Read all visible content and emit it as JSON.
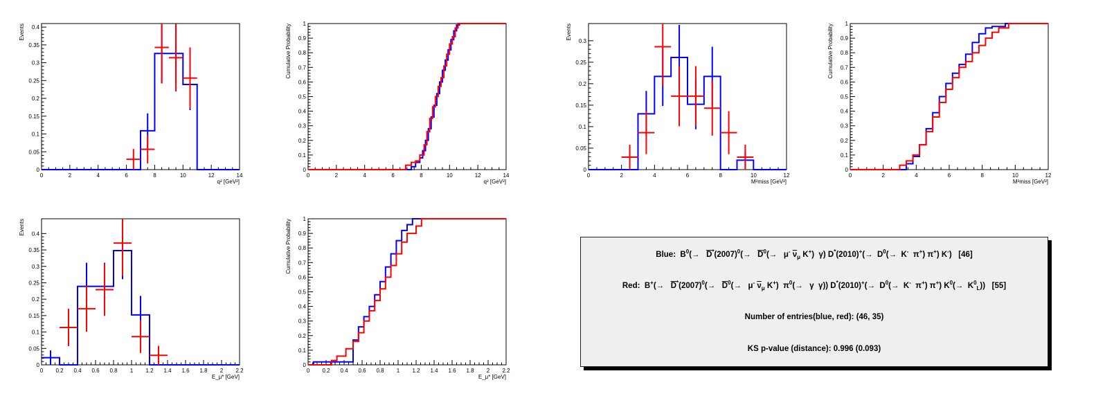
{
  "chart_data": [
    {
      "type": "histogram",
      "id": "p1",
      "xlabel": "q² [GeV²]",
      "ylabel": "Events",
      "xlim": [
        0,
        14
      ],
      "ylim": [
        0,
        0.41
      ],
      "xticks": [
        0,
        2,
        4,
        6,
        8,
        10,
        12,
        14
      ],
      "yticks": [
        0,
        0.05,
        0.1,
        0.15,
        0.2,
        0.25,
        0.3,
        0.35,
        0.4
      ],
      "series": [
        {
          "color": "#0000ff",
          "bin_width": 1,
          "x": [
            0.5,
            1.5,
            2.5,
            3.5,
            4.5,
            5.5,
            6.5,
            7.5,
            8.5,
            9.5,
            10.5,
            11.5,
            12.5,
            13.5
          ],
          "y": [
            0,
            0,
            0,
            0,
            0,
            0,
            0,
            0.109,
            0.326,
            0.326,
            0.239,
            0,
            0,
            0
          ],
          "err": [
            0,
            0,
            0,
            0,
            0,
            0,
            0,
            0.049,
            0.084,
            0.084,
            0.072,
            0,
            0,
            0
          ]
        },
        {
          "color": "#ff0000",
          "bin_width": 1,
          "points": [
            [
              6.5,
              0.029,
              0.029
            ],
            [
              7.5,
              0.057,
              0.04
            ],
            [
              8.5,
              0.343,
              0.1
            ],
            [
              9.5,
              0.314,
              0.095
            ],
            [
              10.5,
              0.257,
              0.086
            ]
          ]
        }
      ]
    },
    {
      "type": "line",
      "id": "p2",
      "xlabel": "q² [GeV²]",
      "ylabel": "Cumulative Probability",
      "xlim": [
        0,
        14
      ],
      "ylim": [
        0,
        1
      ],
      "xticks": [
        0,
        2,
        4,
        6,
        8,
        10,
        12,
        14
      ],
      "yticks": [
        0,
        0.1,
        0.2,
        0.3,
        0.4,
        0.5,
        0.6,
        0.7,
        0.8,
        0.9,
        1
      ],
      "series": [
        {
          "color": "#0000ff",
          "x": [
            0,
            7.0,
            7.3,
            7.6,
            7.9,
            8.1,
            8.3,
            8.5,
            8.7,
            8.9,
            9.1,
            9.3,
            9.5,
            9.7,
            9.9,
            10.1,
            10.3,
            10.5,
            10.7,
            14
          ],
          "y": [
            0,
            0,
            0.02,
            0.05,
            0.08,
            0.13,
            0.2,
            0.28,
            0.36,
            0.44,
            0.52,
            0.6,
            0.68,
            0.75,
            0.82,
            0.89,
            0.95,
            0.99,
            1,
            1
          ]
        },
        {
          "color": "#ff0000",
          "x": [
            0,
            6.5,
            6.9,
            7.3,
            7.6,
            7.9,
            8.2,
            8.4,
            8.6,
            8.8,
            9.0,
            9.2,
            9.4,
            9.6,
            9.8,
            10.0,
            10.2,
            10.4,
            10.6,
            14
          ],
          "y": [
            0,
            0,
            0.03,
            0.05,
            0.06,
            0.1,
            0.17,
            0.26,
            0.35,
            0.43,
            0.5,
            0.57,
            0.63,
            0.71,
            0.79,
            0.86,
            0.91,
            0.97,
            1,
            1
          ]
        }
      ]
    },
    {
      "type": "histogram",
      "id": "p3",
      "xlabel": "M²miss [GeV²]",
      "ylabel": "Events",
      "xlim": [
        0,
        12
      ],
      "ylim": [
        0,
        0.34
      ],
      "xticks": [
        0,
        2,
        4,
        6,
        8,
        10,
        12
      ],
      "yticks": [
        0,
        0.05,
        0.1,
        0.15,
        0.2,
        0.25,
        0.3
      ],
      "series": [
        {
          "color": "#0000ff",
          "bin_width": 1,
          "x": [
            0.5,
            1.5,
            2.5,
            3.5,
            4.5,
            5.5,
            6.5,
            7.5,
            8.5,
            9.5,
            10.5,
            11.5
          ],
          "y": [
            0,
            0,
            0,
            0.13,
            0.217,
            0.261,
            0.152,
            0.217,
            0,
            0.022,
            0,
            0
          ],
          "err": [
            0,
            0,
            0,
            0.053,
            0.069,
            0.076,
            0.058,
            0.069,
            0,
            0.022,
            0,
            0
          ]
        },
        {
          "color": "#ff0000",
          "bin_width": 1,
          "points": [
            [
              2.5,
              0.029,
              0.029
            ],
            [
              3.5,
              0.086,
              0.05
            ],
            [
              4.5,
              0.286,
              0.09
            ],
            [
              5.5,
              0.171,
              0.07
            ],
            [
              6.5,
              0.171,
              0.07
            ],
            [
              7.5,
              0.143,
              0.064
            ],
            [
              8.5,
              0.086,
              0.05
            ],
            [
              9.5,
              0.029,
              0.029
            ]
          ]
        }
      ]
    },
    {
      "type": "line",
      "id": "p4",
      "xlabel": "M²miss [GeV²]",
      "ylabel": "Cumulative Probability",
      "xlim": [
        0,
        12
      ],
      "ylim": [
        0,
        1
      ],
      "xticks": [
        0,
        2,
        4,
        6,
        8,
        10,
        12
      ],
      "yticks": [
        0,
        0.1,
        0.2,
        0.3,
        0.4,
        0.5,
        0.6,
        0.7,
        0.8,
        0.9,
        1
      ],
      "series": [
        {
          "color": "#0000ff",
          "x": [
            0,
            3.0,
            3.4,
            3.8,
            4.2,
            4.6,
            5.0,
            5.4,
            5.8,
            6.2,
            6.6,
            7.0,
            7.4,
            7.8,
            8.2,
            8.6,
            9.0,
            9.4,
            12
          ],
          "y": [
            0,
            0,
            0.04,
            0.09,
            0.17,
            0.28,
            0.39,
            0.5,
            0.59,
            0.66,
            0.72,
            0.79,
            0.87,
            0.93,
            0.97,
            0.98,
            0.98,
            1,
            1
          ]
        },
        {
          "color": "#ff0000",
          "x": [
            0,
            2.6,
            3.0,
            3.4,
            3.8,
            4.2,
            4.6,
            5.0,
            5.4,
            5.8,
            6.2,
            6.6,
            7.0,
            7.4,
            7.8,
            8.2,
            8.6,
            9.0,
            9.6,
            12
          ],
          "y": [
            0,
            0,
            0.03,
            0.06,
            0.1,
            0.17,
            0.26,
            0.36,
            0.46,
            0.55,
            0.63,
            0.7,
            0.74,
            0.8,
            0.85,
            0.9,
            0.94,
            0.97,
            1,
            1
          ]
        }
      ]
    },
    {
      "type": "histogram",
      "id": "p5",
      "xlabel": "E_μ* [GeV]",
      "ylabel": "Events",
      "xlim": [
        0,
        2.2
      ],
      "ylim": [
        0,
        0.445
      ],
      "xticks": [
        0,
        0.2,
        0.4,
        0.6,
        0.8,
        1,
        1.2,
        1.4,
        1.6,
        1.8,
        2,
        2.2
      ],
      "yticks": [
        0,
        0.05,
        0.1,
        0.15,
        0.2,
        0.25,
        0.3,
        0.35,
        0.4
      ],
      "series": [
        {
          "color": "#0000ff",
          "bin_width": 0.2,
          "x": [
            0.1,
            0.3,
            0.5,
            0.7,
            0.9,
            1.1,
            1.3,
            1.5,
            1.7,
            1.9,
            2.1
          ],
          "y": [
            0.022,
            0,
            0.239,
            0.239,
            0.348,
            0.152,
            0,
            0,
            0,
            0,
            0
          ],
          "err": [
            0.022,
            0,
            0.072,
            0.072,
            0.087,
            0.058,
            0,
            0,
            0,
            0,
            0
          ]
        },
        {
          "color": "#ff0000",
          "bin_width": 0.2,
          "points": [
            [
              0.3,
              0.114,
              0.057
            ],
            [
              0.5,
              0.171,
              0.07
            ],
            [
              0.7,
              0.229,
              0.08
            ],
            [
              0.9,
              0.371,
              0.1
            ],
            [
              1.1,
              0.086,
              0.05
            ],
            [
              1.3,
              0.029,
              0.029
            ]
          ]
        }
      ]
    },
    {
      "type": "line",
      "id": "p6",
      "xlabel": "E_μ* [GeV]",
      "ylabel": "Cumulative Probability",
      "xlim": [
        0,
        2.2
      ],
      "ylim": [
        0,
        1
      ],
      "xticks": [
        0,
        0.2,
        0.4,
        0.6,
        0.8,
        1,
        1.2,
        1.4,
        1.6,
        1.8,
        2,
        2.2
      ],
      "yticks": [
        0,
        0.1,
        0.2,
        0.3,
        0.4,
        0.5,
        0.6,
        0.7,
        0.8,
        0.9,
        1
      ],
      "series": [
        {
          "color": "#0000ff",
          "x": [
            0,
            0.06,
            0.44,
            0.5,
            0.56,
            0.62,
            0.68,
            0.74,
            0.8,
            0.86,
            0.92,
            0.98,
            1.04,
            1.1,
            1.16,
            2.2
          ],
          "y": [
            0,
            0.02,
            0.02,
            0.17,
            0.26,
            0.33,
            0.4,
            0.48,
            0.57,
            0.67,
            0.76,
            0.85,
            0.92,
            0.96,
            1,
            1
          ]
        },
        {
          "color": "#ff0000",
          "x": [
            0,
            0.2,
            0.26,
            0.32,
            0.42,
            0.5,
            0.56,
            0.62,
            0.68,
            0.74,
            0.8,
            0.86,
            0.92,
            0.98,
            1.04,
            1.1,
            1.2,
            1.26,
            2.2
          ],
          "y": [
            0,
            0,
            0.03,
            0.06,
            0.11,
            0.16,
            0.22,
            0.3,
            0.37,
            0.44,
            0.52,
            0.6,
            0.68,
            0.76,
            0.84,
            0.9,
            0.95,
            1,
            1
          ]
        }
      ]
    }
  ],
  "legend": {
    "blue_label": "Blue:",
    "red_label": "Red:",
    "entries_text": "Number of entries(blue, red): (46, 35)",
    "ks_text": "KS p-value (distance): 0.996 (0.093)"
  }
}
